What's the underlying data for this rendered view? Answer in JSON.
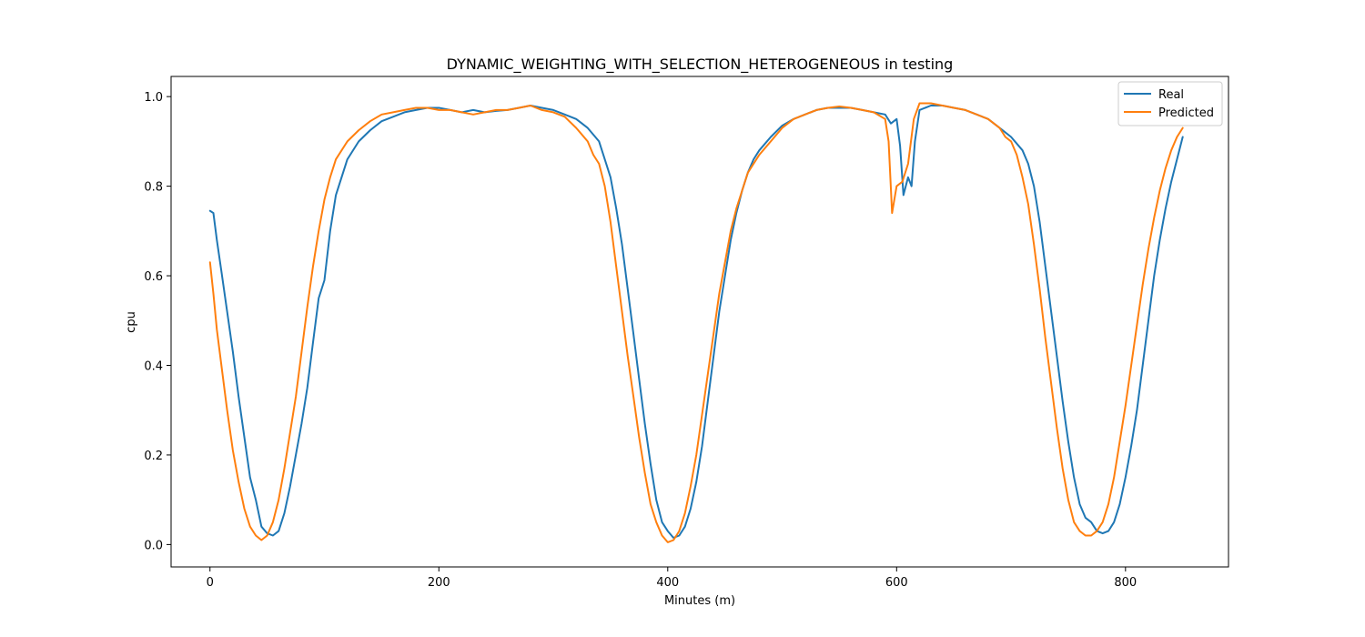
{
  "chart_data": {
    "type": "line",
    "title": "DYNAMIC_WEIGHTING_WITH_SELECTION_HETEROGENEOUS in testing",
    "xlabel": "Minutes (m)",
    "ylabel": "cpu",
    "xlim": [
      -34,
      890
    ],
    "ylim": [
      -0.05,
      1.045
    ],
    "xticks": [
      0,
      200,
      400,
      600,
      800
    ],
    "xtick_labels": [
      "0",
      "200",
      "400",
      "600",
      "800"
    ],
    "yticks": [
      0.0,
      0.2,
      0.4,
      0.6,
      0.8,
      1.0
    ],
    "ytick_labels": [
      "0.0",
      "0.2",
      "0.4",
      "0.6",
      "0.8",
      "1.0"
    ],
    "grid": false,
    "legend_position": "top-right",
    "series": [
      {
        "name": "Real",
        "color": "#1f77b4",
        "x": [
          0,
          3,
          6,
          10,
          15,
          20,
          25,
          30,
          35,
          40,
          45,
          50,
          55,
          60,
          65,
          70,
          75,
          80,
          85,
          90,
          95,
          100,
          105,
          110,
          120,
          130,
          140,
          150,
          160,
          170,
          180,
          190,
          200,
          210,
          220,
          230,
          240,
          250,
          260,
          270,
          280,
          290,
          300,
          310,
          320,
          330,
          340,
          345,
          350,
          355,
          360,
          365,
          370,
          375,
          380,
          385,
          390,
          395,
          400,
          405,
          410,
          415,
          420,
          425,
          430,
          435,
          440,
          445,
          450,
          455,
          460,
          465,
          470,
          475,
          480,
          490,
          500,
          510,
          520,
          530,
          540,
          550,
          560,
          570,
          580,
          590,
          595,
          600,
          603,
          606,
          610,
          613,
          616,
          620,
          630,
          640,
          650,
          660,
          670,
          680,
          690,
          700,
          710,
          715,
          720,
          725,
          730,
          735,
          740,
          745,
          750,
          755,
          760,
          765,
          770,
          775,
          780,
          785,
          790,
          795,
          800,
          805,
          810,
          815,
          820,
          825,
          830,
          835,
          840,
          845,
          850
        ],
        "y": [
          0.745,
          0.74,
          0.68,
          0.61,
          0.52,
          0.43,
          0.33,
          0.24,
          0.15,
          0.1,
          0.04,
          0.025,
          0.02,
          0.03,
          0.07,
          0.13,
          0.2,
          0.27,
          0.35,
          0.45,
          0.55,
          0.59,
          0.7,
          0.78,
          0.86,
          0.9,
          0.925,
          0.945,
          0.955,
          0.965,
          0.97,
          0.975,
          0.975,
          0.97,
          0.965,
          0.97,
          0.965,
          0.968,
          0.97,
          0.975,
          0.98,
          0.975,
          0.97,
          0.96,
          0.95,
          0.93,
          0.9,
          0.86,
          0.82,
          0.75,
          0.67,
          0.57,
          0.47,
          0.37,
          0.27,
          0.18,
          0.1,
          0.05,
          0.03,
          0.015,
          0.02,
          0.04,
          0.08,
          0.14,
          0.22,
          0.32,
          0.42,
          0.52,
          0.6,
          0.68,
          0.74,
          0.79,
          0.83,
          0.86,
          0.88,
          0.91,
          0.935,
          0.95,
          0.96,
          0.97,
          0.975,
          0.975,
          0.975,
          0.97,
          0.965,
          0.96,
          0.94,
          0.95,
          0.89,
          0.78,
          0.82,
          0.8,
          0.9,
          0.97,
          0.98,
          0.98,
          0.975,
          0.97,
          0.96,
          0.95,
          0.93,
          0.91,
          0.88,
          0.85,
          0.8,
          0.72,
          0.62,
          0.52,
          0.42,
          0.32,
          0.23,
          0.15,
          0.09,
          0.06,
          0.05,
          0.03,
          0.025,
          0.03,
          0.05,
          0.09,
          0.15,
          0.22,
          0.3,
          0.4,
          0.5,
          0.6,
          0.68,
          0.75,
          0.81,
          0.86,
          0.91
        ]
      },
      {
        "name": "Predicted",
        "color": "#ff7f0e",
        "x": [
          0,
          3,
          6,
          10,
          15,
          20,
          25,
          30,
          35,
          40,
          45,
          50,
          55,
          60,
          65,
          70,
          75,
          80,
          85,
          90,
          95,
          100,
          105,
          110,
          120,
          130,
          140,
          150,
          160,
          170,
          180,
          190,
          200,
          210,
          220,
          230,
          240,
          250,
          260,
          270,
          280,
          290,
          300,
          310,
          320,
          330,
          335,
          340,
          345,
          350,
          355,
          360,
          365,
          370,
          375,
          380,
          385,
          390,
          395,
          400,
          405,
          410,
          415,
          420,
          425,
          430,
          435,
          440,
          445,
          450,
          455,
          460,
          465,
          470,
          480,
          490,
          500,
          510,
          520,
          530,
          540,
          550,
          560,
          570,
          580,
          590,
          593,
          596,
          600,
          605,
          610,
          615,
          620,
          630,
          640,
          650,
          660,
          670,
          680,
          690,
          695,
          700,
          705,
          710,
          715,
          720,
          725,
          730,
          735,
          740,
          745,
          750,
          755,
          760,
          765,
          770,
          775,
          780,
          785,
          790,
          795,
          800,
          805,
          810,
          815,
          820,
          825,
          830,
          835,
          840,
          845,
          850
        ],
        "y": [
          0.63,
          0.56,
          0.48,
          0.4,
          0.3,
          0.21,
          0.14,
          0.08,
          0.04,
          0.02,
          0.01,
          0.02,
          0.05,
          0.1,
          0.17,
          0.25,
          0.33,
          0.43,
          0.53,
          0.62,
          0.7,
          0.77,
          0.82,
          0.86,
          0.9,
          0.925,
          0.945,
          0.96,
          0.965,
          0.97,
          0.975,
          0.975,
          0.97,
          0.97,
          0.965,
          0.96,
          0.965,
          0.97,
          0.97,
          0.975,
          0.98,
          0.97,
          0.965,
          0.955,
          0.93,
          0.9,
          0.87,
          0.85,
          0.8,
          0.72,
          0.62,
          0.52,
          0.42,
          0.33,
          0.24,
          0.16,
          0.09,
          0.05,
          0.02,
          0.005,
          0.01,
          0.03,
          0.07,
          0.13,
          0.2,
          0.29,
          0.38,
          0.47,
          0.56,
          0.63,
          0.7,
          0.75,
          0.79,
          0.83,
          0.87,
          0.9,
          0.93,
          0.95,
          0.96,
          0.97,
          0.975,
          0.978,
          0.975,
          0.97,
          0.965,
          0.95,
          0.9,
          0.74,
          0.8,
          0.81,
          0.85,
          0.95,
          0.985,
          0.985,
          0.98,
          0.975,
          0.97,
          0.96,
          0.95,
          0.93,
          0.91,
          0.9,
          0.87,
          0.82,
          0.76,
          0.67,
          0.57,
          0.46,
          0.36,
          0.26,
          0.17,
          0.1,
          0.05,
          0.03,
          0.02,
          0.02,
          0.03,
          0.05,
          0.09,
          0.15,
          0.23,
          0.31,
          0.4,
          0.49,
          0.58,
          0.66,
          0.73,
          0.79,
          0.84,
          0.88,
          0.91,
          0.93
        ]
      }
    ]
  }
}
